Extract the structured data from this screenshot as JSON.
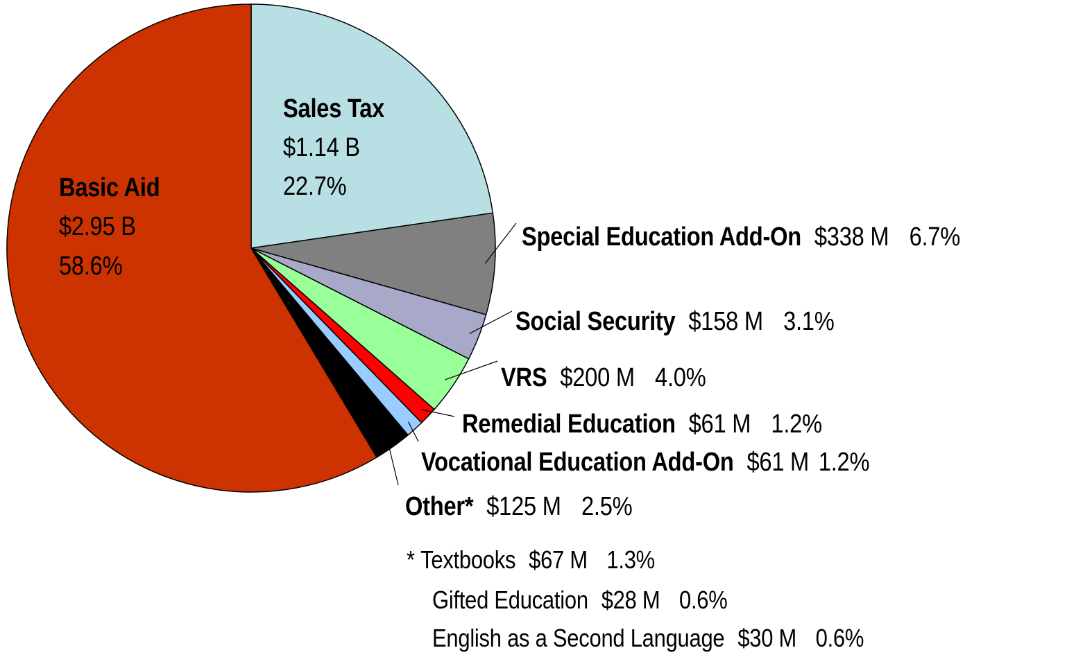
{
  "chart_data": {
    "type": "pie",
    "slices": [
      {
        "name": "Sales Tax",
        "amount": "$1.14 B",
        "percent_label": "22.7%",
        "value": 22.7,
        "color": "#b8e0e4"
      },
      {
        "name": "Special Education Add-On",
        "amount": "$338 M",
        "percent_label": "6.7%",
        "value": 6.7,
        "color": "#808080"
      },
      {
        "name": "Social Security",
        "amount": "$158 M",
        "percent_label": "3.1%",
        "value": 3.1,
        "color": "#a8a8c8"
      },
      {
        "name": "VRS",
        "amount": "$200 M",
        "percent_label": "4.0%",
        "value": 4.0,
        "color": "#99ff99"
      },
      {
        "name": "Remedial Education",
        "amount": "$61 M",
        "percent_label": "1.2%",
        "value": 1.2,
        "color": "#ff0000"
      },
      {
        "name": "Vocational Education Add-On",
        "amount": "$61 M",
        "percent_label": "1.2%",
        "value": 1.2,
        "color": "#99ccff"
      },
      {
        "name": "Other*",
        "amount": "$125 M",
        "percent_label": "2.5%",
        "value": 2.5,
        "color": "#000000"
      },
      {
        "name": "Basic Aid",
        "amount": "$2.95 B",
        "percent_label": "58.6%",
        "value": 58.6,
        "color": "#cc3300"
      }
    ],
    "footnote": {
      "marker": "*",
      "items": [
        {
          "name": "Textbooks",
          "amount": "$67 M",
          "percent_label": "1.3%"
        },
        {
          "name": "Gifted Education",
          "amount": "$28 M",
          "percent_label": "0.6%"
        },
        {
          "name": "English as a Second Language",
          "amount": "$30 M",
          "percent_label": "0.6%"
        }
      ]
    }
  }
}
